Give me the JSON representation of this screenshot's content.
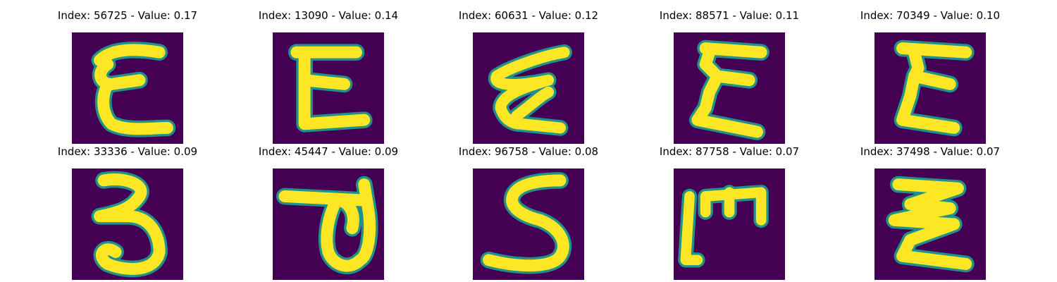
{
  "figure": {
    "background_color": "#440154",
    "stroke_color": "#fde725",
    "edge_colors": [
      "#35b779",
      "#21918c"
    ],
    "rows": 2,
    "cols": 5
  },
  "panels": [
    {
      "title": "Index: 56725 - Value: 0.17",
      "glyph": "E-like"
    },
    {
      "title": "Index: 13090 - Value: 0.14",
      "glyph": "E-like"
    },
    {
      "title": "Index: 60631 - Value: 0.12",
      "glyph": "E-like"
    },
    {
      "title": "Index: 88571 - Value: 0.11",
      "glyph": "E-like"
    },
    {
      "title": "Index: 70349 - Value: 0.10",
      "glyph": "E-like"
    },
    {
      "title": "Index: 33336 - Value: 0.09",
      "glyph": "3-like"
    },
    {
      "title": "Index: 45447 - Value: 0.09",
      "glyph": "d-like"
    },
    {
      "title": "Index: 96758 - Value: 0.08",
      "glyph": "S-like"
    },
    {
      "title": "Index: 87758 - Value: 0.07",
      "glyph": "m-like"
    },
    {
      "title": "Index: 37498 - Value: 0.07",
      "glyph": "Z-like"
    }
  ]
}
